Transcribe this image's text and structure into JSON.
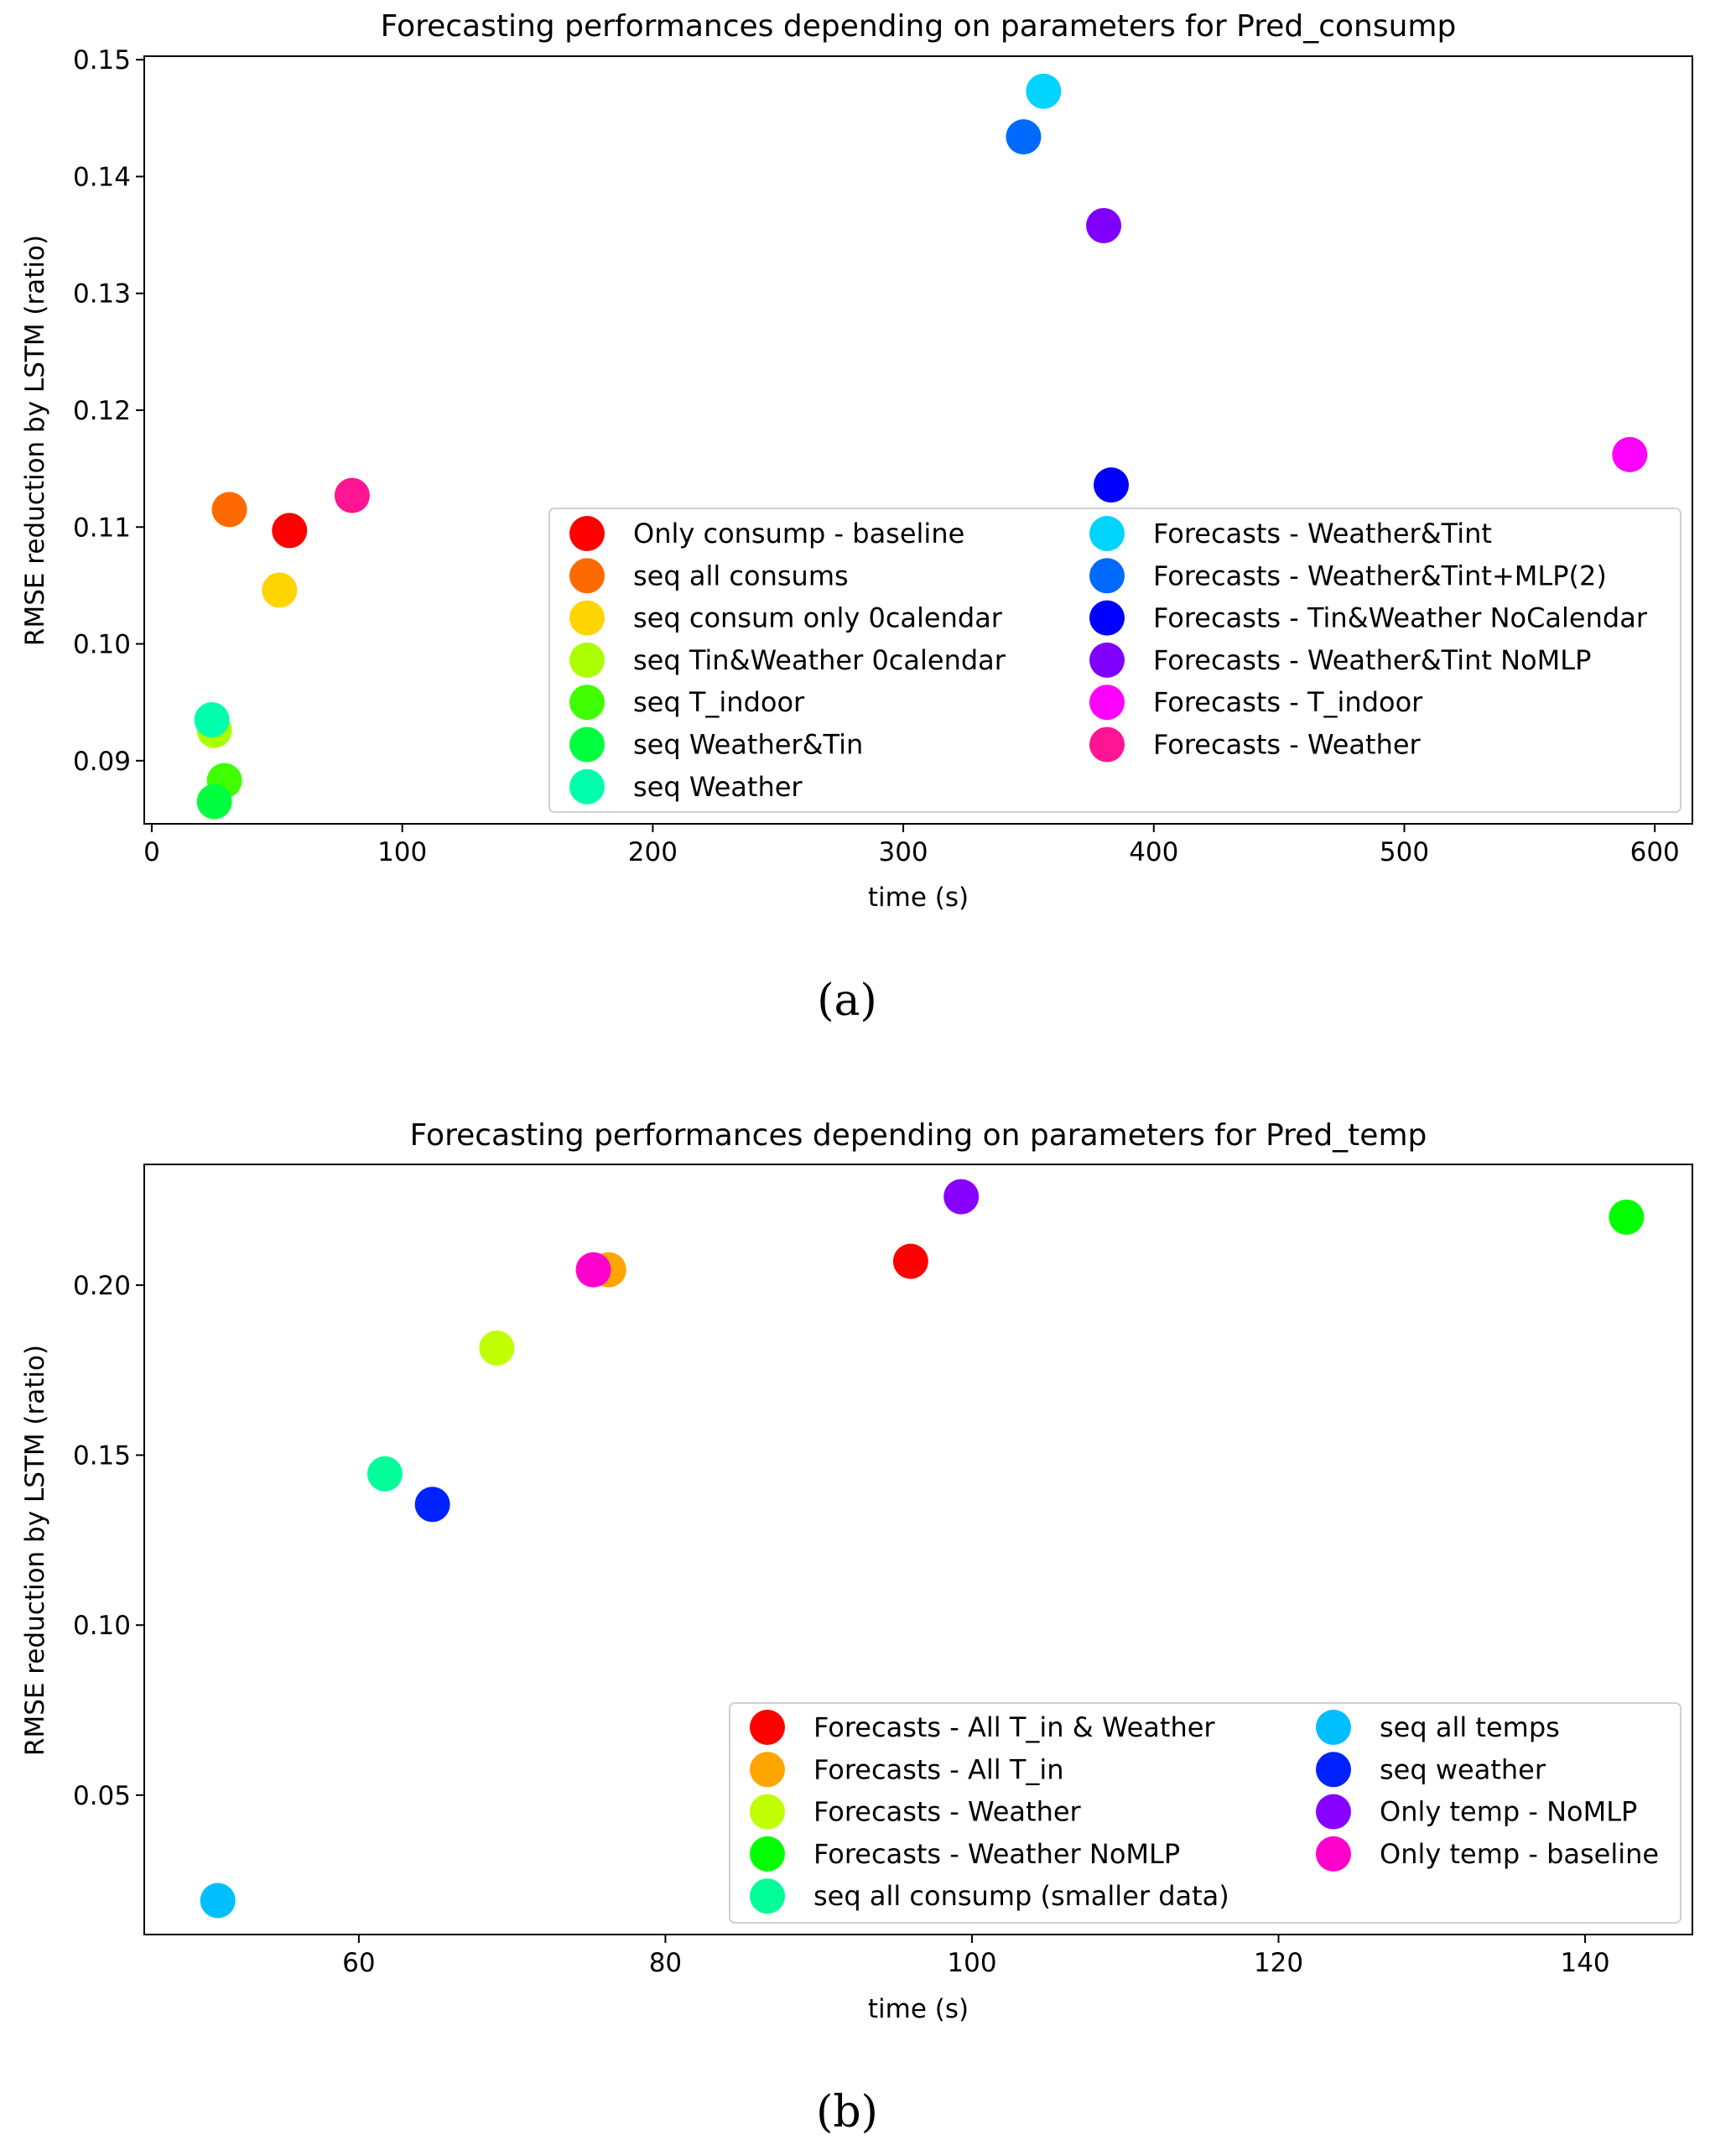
{
  "chart_data": [
    {
      "type": "scatter",
      "title": "Forecasting performances depending on parameters for Pred_consump",
      "xlabel": "time (s)",
      "ylabel": "RMSE reduction by LSTM (ratio)",
      "xlim": [
        -3,
        615
      ],
      "ylim": [
        0.0846,
        0.1503
      ],
      "xticks": [
        0,
        100,
        200,
        300,
        400,
        500,
        600
      ],
      "yticks": [
        0.09,
        0.1,
        0.11,
        0.12,
        0.13,
        0.14,
        0.15
      ],
      "ytick_labels": [
        "0.09",
        "0.10",
        "0.11",
        "0.12",
        "0.13",
        "0.14",
        "0.15"
      ],
      "grid": false,
      "legend": {
        "placement": "lower-right",
        "columns": 2
      },
      "caption": "(a)",
      "series": [
        {
          "name": "Only consump - baseline",
          "color": "#ff0000",
          "x": [
            55
          ],
          "y": [
            0.1097
          ]
        },
        {
          "name": "seq all consums",
          "color": "#ff6a00",
          "x": [
            31
          ],
          "y": [
            0.1115
          ]
        },
        {
          "name": "seq consum only 0calendar",
          "color": "#ffd500",
          "x": [
            51
          ],
          "y": [
            0.1046
          ]
        },
        {
          "name": "seq Tin&Weather 0calendar",
          "color": "#aaff00",
          "x": [
            25
          ],
          "y": [
            0.0926
          ]
        },
        {
          "name": "seq T_indoor",
          "color": "#3fff00",
          "x": [
            29
          ],
          "y": [
            0.0883
          ]
        },
        {
          "name": "seq Weather&Tin",
          "color": "#00ff3f",
          "x": [
            25
          ],
          "y": [
            0.0865
          ]
        },
        {
          "name": "seq Weather",
          "color": "#00ffaa",
          "x": [
            24
          ],
          "y": [
            0.0935
          ]
        },
        {
          "name": "Forecasts - Weather&Tint",
          "color": "#00d4ff",
          "x": [
            356
          ],
          "y": [
            0.1473
          ]
        },
        {
          "name": "Forecasts - Weather&Tint+MLP(2)",
          "color": "#006aff",
          "x": [
            348
          ],
          "y": [
            0.1434
          ]
        },
        {
          "name": "Forecasts - Tin&Weather NoCalendar",
          "color": "#0000ff",
          "x": [
            383
          ],
          "y": [
            0.1136
          ]
        },
        {
          "name": "Forecasts - Weather&Tint NoMLP",
          "color": "#7f00ff",
          "x": [
            380
          ],
          "y": [
            0.1358
          ]
        },
        {
          "name": "Forecasts - T_indoor",
          "color": "#ff00ff",
          "x": [
            590
          ],
          "y": [
            0.1162
          ]
        },
        {
          "name": "Forecasts - Weather",
          "color": "#ff1493",
          "x": [
            80
          ],
          "y": [
            0.1127
          ]
        }
      ]
    },
    {
      "type": "scatter",
      "title": "Forecasting performances depending on parameters for Pred_temp",
      "xlabel": "time (s)",
      "ylabel": "RMSE reduction by LSTM (ratio)",
      "xlim": [
        46,
        147
      ],
      "ylim": [
        0.009,
        0.2355
      ],
      "xticks": [
        60,
        80,
        100,
        120,
        140
      ],
      "yticks": [
        0.05,
        0.1,
        0.15,
        0.2
      ],
      "ytick_labels": [
        "0.05",
        "0.10",
        "0.15",
        "0.20"
      ],
      "grid": false,
      "legend": {
        "placement": "lower-right",
        "columns": 2
      },
      "caption": "(b)",
      "series": [
        {
          "name": "Forecasts - All T_in & Weather",
          "color": "#ff0000",
          "x": [
            96
          ],
          "y": [
            0.207
          ]
        },
        {
          "name": "Forecasts - All T_in",
          "color": "#ffa500",
          "x": [
            76.3
          ],
          "y": [
            0.2045
          ]
        },
        {
          "name": "Forecasts - Weather",
          "color": "#bfff00",
          "x": [
            69
          ],
          "y": [
            0.1815
          ]
        },
        {
          "name": "Forecasts - Weather NoMLP",
          "color": "#00ff00",
          "x": [
            142.7
          ],
          "y": [
            0.22
          ]
        },
        {
          "name": "seq all consump (smaller data)",
          "color": "#00ff99",
          "x": [
            61.7
          ],
          "y": [
            0.1445
          ]
        },
        {
          "name": "seq all temps",
          "color": "#00bfff",
          "x": [
            50.8
          ],
          "y": [
            0.019
          ]
        },
        {
          "name": "seq weather",
          "color": "#0022ff",
          "x": [
            64.8
          ],
          "y": [
            0.1355
          ]
        },
        {
          "name": "Only temp - NoMLP",
          "color": "#8800ff",
          "x": [
            99.3
          ],
          "y": [
            0.226
          ]
        },
        {
          "name": "Only temp - baseline",
          "color": "#ff00cc",
          "x": [
            75.3
          ],
          "y": [
            0.2045
          ]
        }
      ]
    }
  ]
}
